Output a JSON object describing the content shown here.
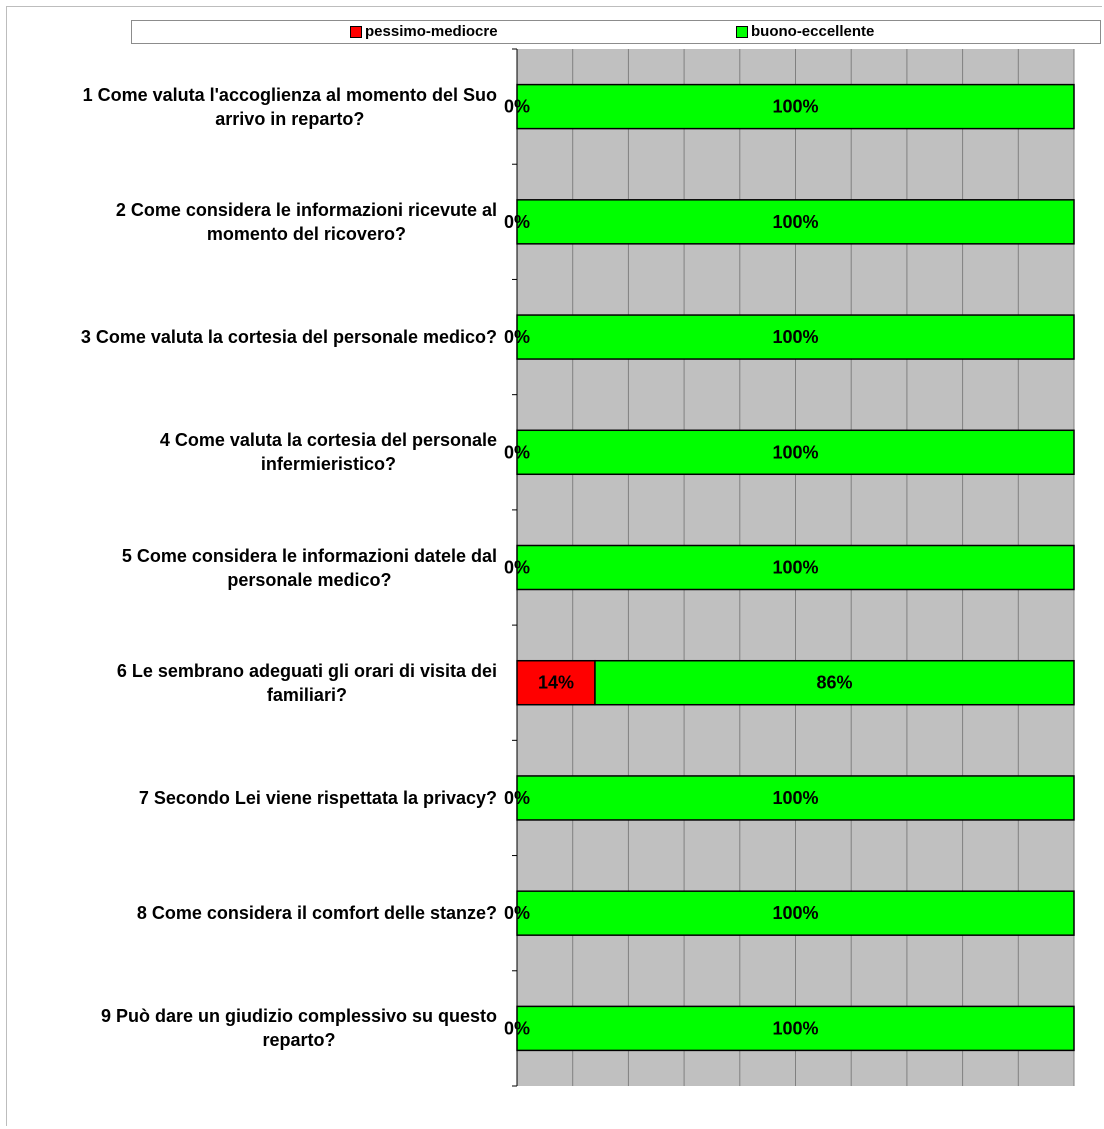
{
  "legend": {
    "series1": "pessimo-mediocre",
    "series2": "buono-eccellente"
  },
  "colors": {
    "series1": "#ff0000",
    "series2": "#00ff00",
    "plot_background": "#c0c0c0",
    "gridline": "#808080"
  },
  "chart_data": {
    "type": "bar",
    "orientation": "horizontal",
    "stacked": "percent",
    "categories": [
      "1 Come valuta l'accoglienza al momento del Suo arrivo in reparto?",
      "2 Come considera le informazioni ricevute al momento del ricovero?",
      "3 Come valuta la cortesia del personale medico?",
      "4 Come valuta la cortesia del personale infermieristico?",
      "5 Come considera le informazioni datele dal personale medico?",
      "6 Le sembrano adeguati gli orari di visita dei familiari?",
      "7 Secondo Lei viene rispettata la privacy?",
      "8 Come considera il comfort delle stanze?",
      "9 Può dare un giudizio complessivo su questo reparto?"
    ],
    "series": [
      {
        "name": "pessimo-mediocre",
        "values": [
          0,
          0,
          0,
          0,
          0,
          14,
          0,
          0,
          0
        ]
      },
      {
        "name": "buono-eccellente",
        "values": [
          100,
          100,
          100,
          100,
          100,
          86,
          100,
          100,
          100
        ]
      }
    ],
    "data_labels": [
      [
        "0%",
        "100%"
      ],
      [
        "0%",
        "100%"
      ],
      [
        "0%",
        "100%"
      ],
      [
        "0%",
        "100%"
      ],
      [
        "0%",
        "100%"
      ],
      [
        "14%",
        "86%"
      ],
      [
        "0%",
        "100%"
      ],
      [
        "0%",
        "100%"
      ],
      [
        "0%",
        "100%"
      ]
    ],
    "xlim": [
      0,
      100
    ],
    "grid": true,
    "legend_position": "top"
  },
  "label_lines": [
    [
      "1 Come valuta l'accoglienza al momento del Suo",
      "arrivo in reparto?"
    ],
    [
      "2 Come considera le informazioni ricevute al",
      "momento del ricovero?"
    ],
    [
      "3 Come valuta la cortesia del personale medico?"
    ],
    [
      "4 Come valuta la cortesia del personale",
      "infermieristico?"
    ],
    [
      "5 Come considera le informazioni datele dal",
      "personale medico?"
    ],
    [
      "6 Le sembrano adeguati gli orari di visita dei",
      "familiari?"
    ],
    [
      "7 Secondo Lei viene rispettata la privacy?"
    ],
    [
      "8 Come considera il comfort delle stanze?"
    ],
    [
      "9 Può dare un giudizio complessivo su questo",
      "reparto?"
    ]
  ]
}
